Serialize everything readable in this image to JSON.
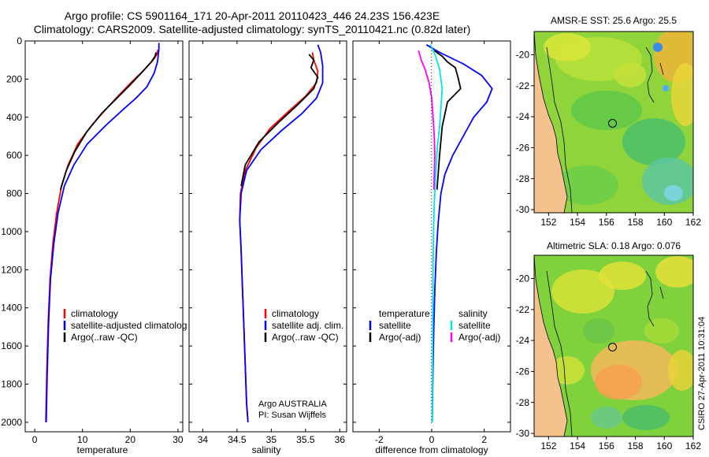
{
  "header": {
    "line1": "Argo profile: CS 5901164_171 20-Apr-2011 20110423_446 24.23S 156.423E",
    "line2": "Climatology: CARS2009. Satellite-adjusted climatology: synTS_20110421.nc (0.82d later)"
  },
  "colors": {
    "climatology": "#ff0000",
    "satellite": "#0000ff",
    "argo": "#000000",
    "sat_salinity": "#00e5ee",
    "argo_salinity": "#ff00ff",
    "land": "#f5c28e"
  },
  "chart_data": [
    {
      "type": "line",
      "name_id": "temperature-panel",
      "xlabel": "temperature",
      "ylabel": "",
      "xlim": [
        -2,
        31
      ],
      "ylim": [
        2050,
        0
      ],
      "xticks": [
        0,
        10,
        20,
        30
      ],
      "yticks": [
        0,
        200,
        400,
        600,
        800,
        1000,
        1200,
        1400,
        1600,
        1800,
        2000
      ],
      "legend": {
        "position": "bottom-left",
        "entries": [
          "climatology",
          "satellite-adjusted climatolog",
          "Argo(..raw -QC)"
        ]
      },
      "series": [
        {
          "name": "climatology",
          "color": "#ff0000",
          "x": [
            25.8,
            25.6,
            24.8,
            23.0,
            20.5,
            17.8,
            15.2,
            12.0,
            9.0,
            7.0,
            5.6,
            4.6,
            3.8,
            3.2,
            2.8,
            2.5,
            2.3
          ],
          "y": [
            45,
            70,
            100,
            150,
            210,
            280,
            350,
            440,
            540,
            650,
            760,
            900,
            1060,
            1250,
            1480,
            1750,
            2000
          ]
        },
        {
          "name": "satellite-adjusted climatolog",
          "color": "#0000ff",
          "x": [
            26.0,
            26.0,
            25.7,
            25.0,
            23.5,
            21.2,
            18.5,
            15.0,
            11.0,
            8.2,
            6.2,
            4.9,
            4.0,
            3.3,
            2.9,
            2.6,
            2.4
          ],
          "y": [
            10,
            45,
            110,
            170,
            240,
            300,
            360,
            440,
            540,
            650,
            760,
            900,
            1060,
            1250,
            1480,
            1750,
            2000
          ]
        },
        {
          "name": "Argo(..raw -QC)",
          "color": "#000000",
          "x": [
            25.4,
            25.2,
            24.4,
            22.6,
            20.0,
            17.2,
            14.0,
            10.8,
            8.4,
            6.6,
            5.4
          ],
          "y": [
            60,
            80,
            110,
            160,
            230,
            300,
            380,
            480,
            580,
            680,
            780
          ]
        }
      ]
    },
    {
      "type": "line",
      "name_id": "salinity-panel",
      "xlabel": "salinity",
      "ylabel": "",
      "xlim": [
        33.8,
        36.1
      ],
      "ylim": [
        2050,
        0
      ],
      "xticks": [
        34,
        34.5,
        35,
        35.5,
        36
      ],
      "legend": {
        "position": "bottom-right",
        "entries": [
          "climatology",
          "satellite adj. clim.",
          "Argo(..raw -QC)"
        ]
      },
      "annotations": [
        "Argo AUSTRALIA",
        "PI: Susan Wijffels"
      ],
      "series": [
        {
          "name": "climatology",
          "color": "#ff0000",
          "x": [
            35.6,
            35.62,
            35.68,
            35.66,
            35.5,
            35.25,
            34.98,
            34.78,
            34.62,
            34.55,
            34.54,
            34.56,
            34.58,
            34.6,
            34.62,
            34.64,
            34.66
          ],
          "y": [
            60,
            100,
            160,
            220,
            290,
            370,
            460,
            560,
            680,
            800,
            940,
            1100,
            1300,
            1500,
            1700,
            1900,
            2000
          ]
        },
        {
          "name": "satellite adj. clim.",
          "color": "#0000ff",
          "x": [
            35.68,
            35.72,
            35.75,
            35.75,
            35.66,
            35.45,
            35.15,
            34.85,
            34.64,
            34.56,
            34.54,
            34.56,
            34.58,
            34.6,
            34.62,
            34.64,
            34.66
          ],
          "y": [
            20,
            60,
            130,
            220,
            300,
            380,
            470,
            570,
            680,
            800,
            940,
            1100,
            1300,
            1500,
            1700,
            1900,
            2000
          ]
        },
        {
          "name": "Argo(..raw -QC)",
          "color": "#000000",
          "x": [
            35.55,
            35.62,
            35.58,
            35.68,
            35.62,
            35.4,
            35.1,
            34.82,
            34.62,
            34.56
          ],
          "y": [
            70,
            100,
            140,
            190,
            250,
            330,
            430,
            530,
            650,
            760
          ]
        }
      ]
    },
    {
      "type": "line",
      "name_id": "difference-panel",
      "xlabel": "difference from climatology",
      "ylabel": "",
      "xlim": [
        -3,
        3
      ],
      "ylim": [
        2050,
        0
      ],
      "xticks": [
        -2,
        0,
        2
      ],
      "legend": {
        "position": "bottom",
        "entries": [
          "temperature",
          "salinity",
          "satellite",
          "satellite",
          "Argo(-adj)",
          "Argo(-adj)"
        ]
      },
      "series": [
        {
          "name": "temperature satellite",
          "color": "#0000ff",
          "x": [
            -0.2,
            0.3,
            1.2,
            1.9,
            2.3,
            2.1,
            1.6,
            1.2,
            0.8,
            0.5,
            0.35,
            0.25,
            0.18,
            0.12,
            0.08,
            0.05,
            0.03,
            0.02
          ],
          "y": [
            20,
            60,
            120,
            180,
            250,
            320,
            400,
            500,
            600,
            700,
            800,
            950,
            1100,
            1300,
            1500,
            1700,
            1900,
            2000
          ]
        },
        {
          "name": "temperature Argo(-adj)",
          "color": "#000000",
          "x": [
            0.1,
            0.4,
            0.6,
            0.9,
            1.0,
            1.1,
            0.6,
            0.4,
            0.3,
            0.2
          ],
          "y": [
            50,
            80,
            110,
            140,
            190,
            250,
            320,
            450,
            600,
            780
          ]
        },
        {
          "name": "salinity satellite",
          "color": "#00e5ee",
          "x": [
            -0.05,
            0.15,
            0.3,
            0.4,
            0.35,
            0.3,
            0.22,
            0.15,
            0.1,
            0.07,
            0.05,
            0.04,
            0.03,
            0.02
          ],
          "y": [
            20,
            80,
            150,
            250,
            350,
            450,
            550,
            700,
            850,
            1000,
            1200,
            1500,
            1800,
            2000
          ]
        },
        {
          "name": "salinity Argo(-adj)",
          "color": "#ff00ff",
          "x": [
            -0.5,
            -0.4,
            -0.25,
            -0.1,
            0.0,
            0.05,
            0.1,
            0.12,
            0.1,
            0.08
          ],
          "y": [
            50,
            100,
            150,
            220,
            300,
            400,
            500,
            600,
            700,
            780
          ]
        }
      ]
    },
    {
      "type": "heatmap",
      "name_id": "sst-map",
      "title": "AMSR-E SST: 25.6 Argo: 25.5",
      "xlim": [
        151,
        162
      ],
      "ylim": [
        -30.2,
        -18.5
      ],
      "xticks": [
        152,
        154,
        156,
        158,
        160,
        162
      ],
      "yticks": [
        -20,
        -22,
        -24,
        -26,
        -28,
        -30
      ],
      "float_position": [
        156.42,
        -24.23
      ]
    },
    {
      "type": "heatmap",
      "name_id": "sla-map",
      "title": "Altimetric SLA: 0.18 Argo: 0.076",
      "xlim": [
        151,
        162
      ],
      "ylim": [
        -30.2,
        -18.5
      ],
      "xticks": [
        152,
        154,
        156,
        158,
        160,
        162
      ],
      "yticks": [
        -20,
        -22,
        -24,
        -26,
        -28,
        -30
      ],
      "float_position": [
        156.42,
        -24.23
      ]
    }
  ],
  "legends": {
    "temperature": [
      "climatology",
      "satellite-adjusted climatolog",
      "Argo(..raw -QC)"
    ],
    "salinity": [
      "climatology",
      "satellite adj. clim.",
      "Argo(..raw -QC)"
    ],
    "difference_left": [
      "temperature",
      "satellite",
      "Argo(-adj)"
    ],
    "difference_right": [
      "salinity",
      "satellite",
      "Argo(-adj)"
    ]
  },
  "credit": "CSIRO 27-Apr-2011 10:31:04"
}
